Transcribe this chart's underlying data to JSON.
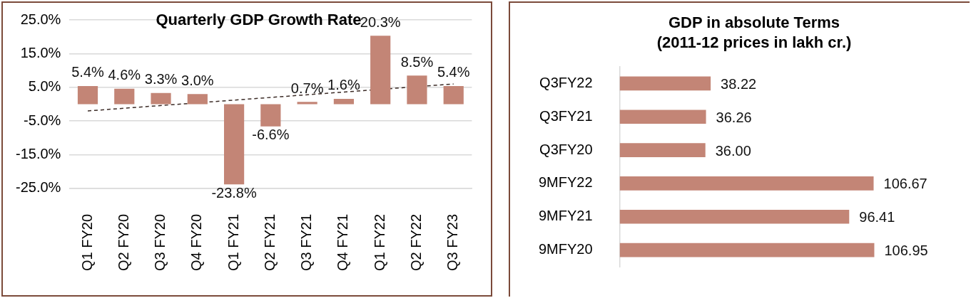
{
  "chart_data": [
    {
      "type": "bar",
      "title": "Quarterly GDP Growth Rate",
      "categories": [
        "Q1 FY20",
        "Q2 FY20",
        "Q3 FY20",
        "Q4 FY20",
        "Q1 FY21",
        "Q2 FY21",
        "Q3 FY21",
        "Q4 FY21",
        "Q1 FY22",
        "Q2 FY22",
        "Q3 FY23"
      ],
      "series": [
        {
          "color": "#c38576",
          "values": [
            5.4,
            4.6,
            3.3,
            3.0,
            -23.8,
            -6.6,
            0.7,
            1.6,
            20.3,
            8.5,
            5.4
          ],
          "value_labels": [
            "5.4%",
            "4.6%",
            "3.3%",
            "3.0%",
            "-23.8%",
            "-6.6%",
            "0.7%",
            "1.6%",
            "20.3%",
            "8.5%",
            "5.4%"
          ]
        },
        {
          "type": "line",
          "color": "#3a2a25",
          "x": [
            "Q1 FY20",
            "Q3 FY23"
          ],
          "values": [
            -2.0,
            6.0
          ],
          "line_style": "dashed",
          "marker": "none"
        }
      ],
      "ylim": [
        -25,
        25
      ],
      "yticks": [
        {
          "value": -25,
          "label": "-25.0%"
        },
        {
          "value": -15,
          "label": "-15.0%"
        },
        {
          "value": -5,
          "label": "-5.0%"
        },
        {
          "value": 5,
          "label": "5.0%"
        },
        {
          "value": 15,
          "label": "15.0%"
        },
        {
          "value": 25,
          "label": "25.0%"
        }
      ],
      "grid": "y",
      "legend": false
    },
    {
      "type": "bar",
      "orientation": "horizontal",
      "title": "GDP in absolute Terms\n(2011-12 prices in lakh cr.)",
      "categories": [
        "Q3FY22",
        "Q3FY21",
        "Q3FY20",
        "9MFY22",
        "9MFY21",
        "9MFY20"
      ],
      "values": [
        38.22,
        36.26,
        36.0,
        106.67,
        96.41,
        106.95
      ],
      "value_labels": [
        "38.22",
        "36.26",
        "36.00",
        "106.67",
        "96.41",
        "106.95"
      ],
      "color": "#c38576",
      "tick_labels": "y",
      "grid": false,
      "legend": false
    }
  ]
}
